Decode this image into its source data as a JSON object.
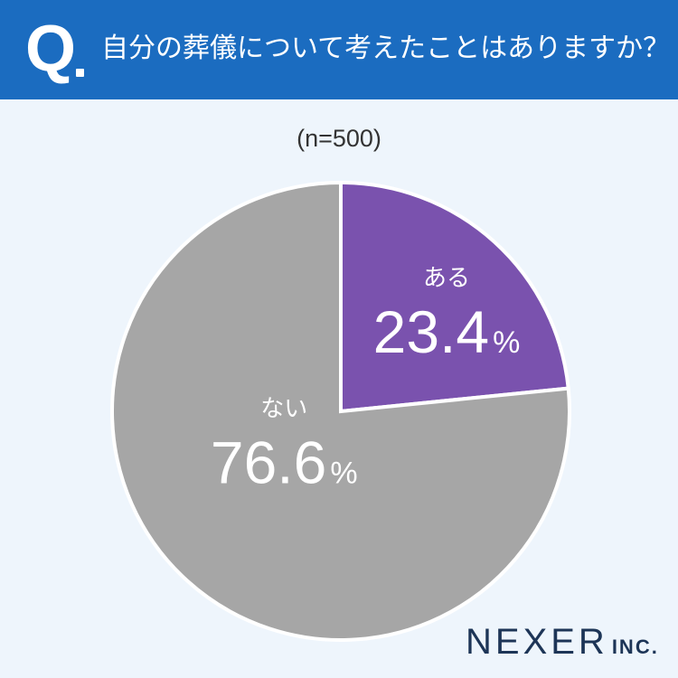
{
  "header": {
    "q_mark": "Q",
    "question": "自分の葬儀について考えたことはありますか？"
  },
  "sample_size": "(n=500)",
  "percent_sign": "%",
  "chart_data": {
    "type": "pie",
    "categories": [
      "ある",
      "ない"
    ],
    "values": [
      23.4,
      76.6
    ],
    "value_labels": [
      "23.4",
      "76.6"
    ],
    "colors": [
      "#7a52ae",
      "#a6a6a6"
    ],
    "start_angle": "12 o'clock, clockwise"
  },
  "brand": {
    "name": "NEXER",
    "suffix": "INC."
  }
}
